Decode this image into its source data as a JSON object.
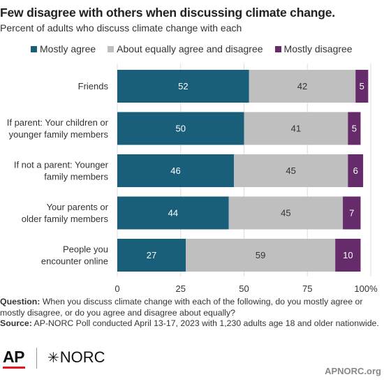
{
  "title": "Few disagree with others when discussing climate change.",
  "subtitle": "Percent of adults who discuss climate change with each",
  "legend": {
    "items": [
      {
        "label": "Mostly agree",
        "color": "#1a5f7a"
      },
      {
        "label": "About equally agree and disagree",
        "color": "#bfbfbf"
      },
      {
        "label": "Mostly disagree",
        "color": "#662b6b"
      }
    ]
  },
  "chart_data": {
    "type": "bar",
    "orientation": "horizontal",
    "stacked": true,
    "categories": [
      [
        "Friends"
      ],
      [
        "If parent: Your children or",
        "younger family members"
      ],
      [
        "If not a parent: Younger",
        "family members"
      ],
      [
        "Your parents or",
        "older family members"
      ],
      [
        "People you",
        "encounter online"
      ]
    ],
    "series": [
      {
        "name": "Mostly agree",
        "color": "#1a5f7a",
        "label_color": "#ffffff",
        "values": [
          52,
          50,
          46,
          44,
          27
        ]
      },
      {
        "name": "About equally agree and disagree",
        "color": "#bfbfbf",
        "label_color": "#333333",
        "values": [
          42,
          41,
          45,
          45,
          59
        ]
      },
      {
        "name": "Mostly disagree",
        "color": "#662b6b",
        "label_color": "#ffffff",
        "values": [
          5,
          5,
          6,
          7,
          10
        ]
      }
    ],
    "x_ticks": [
      "0",
      "25",
      "50",
      "75",
      "100%"
    ],
    "xlim": [
      0,
      100
    ],
    "grid": true
  },
  "footer": {
    "question_label": "Question:",
    "question_text": "When you discuss climate change with each of the following, do you mostly agree or mostly disagree, or do you agree and disagree about equally?",
    "source_label": "Source:",
    "source_text": "AP-NORC Poll conducted April 13-17, 2023 with 1,230 adults age 18 and older nationwide."
  },
  "logos": {
    "ap": "AP",
    "norc_star": "✳",
    "norc": "NORC"
  },
  "site": "APNORC.org"
}
